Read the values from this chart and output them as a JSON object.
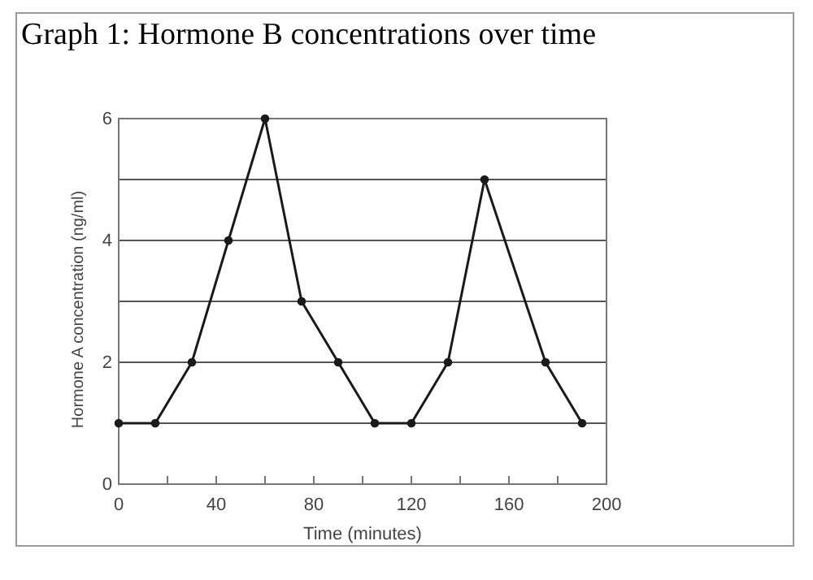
{
  "chart_data": {
    "type": "line",
    "title": "Graph 1: Hormone B concentrations over time",
    "xlabel": "Time (minutes)",
    "ylabel": "Hormone A concentration (ng/ml)",
    "x": [
      0,
      15,
      30,
      45,
      60,
      75,
      90,
      105,
      120,
      135,
      150,
      175,
      190
    ],
    "values": [
      1,
      1,
      2,
      4,
      6,
      3,
      2,
      1,
      1,
      2,
      5,
      2,
      1
    ],
    "color": "#1a1a1a",
    "marker": "circle",
    "line_style": "solid",
    "grid": "y",
    "xlim": [
      0,
      200
    ],
    "xticks": [
      0,
      {
        "value": 20,
        "label": null
      },
      40,
      {
        "value": 60,
        "label": null
      },
      80,
      {
        "value": 100,
        "label": null
      },
      120,
      {
        "value": 140,
        "label": null
      },
      160,
      {
        "value": 180,
        "label": null
      },
      200
    ],
    "ylim": [
      0,
      6
    ],
    "yticks": [
      0,
      {
        "value": 1,
        "label": null
      },
      2,
      {
        "value": 3,
        "label": null
      },
      4,
      {
        "value": 5,
        "label": null
      },
      6
    ]
  }
}
